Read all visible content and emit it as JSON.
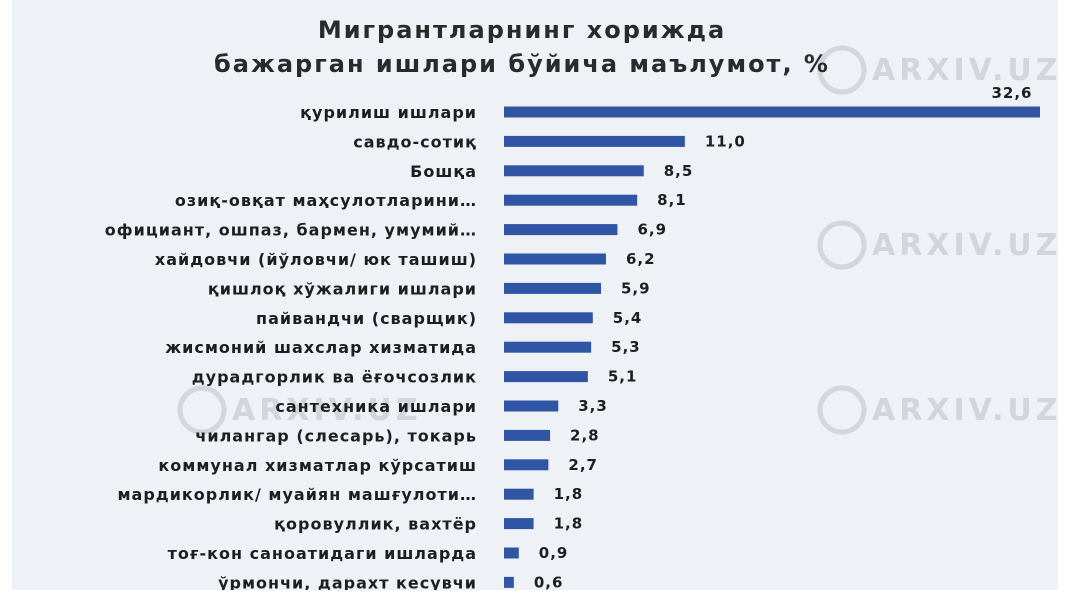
{
  "chart_data": {
    "type": "bar",
    "orientation": "horizontal",
    "title_lines": [
      "Мигрантларнинг хорижда",
      "бажарган ишлари бўйича маълумот, %"
    ],
    "categories": [
      "қурилиш ишлари",
      "савдо-сотиқ",
      "Бошқа",
      "озиқ-овқат маҳсулотларини…",
      "официант, ошпаз, бармен, умумий…",
      "хайдовчи (йўловчи/ юк ташиш)",
      "қишлоқ хўжалиги ишлари",
      "пайвандчи (сварщик)",
      "жисмоний шахслар хизматида",
      "дурадгорлик ва ёғочсозлик",
      "сантехника ишлари",
      "чилангар (слесарь), токарь",
      "коммунал хизматлар кўрсатиш",
      "мардикорлик/ муайян машғулоти…",
      "қоровуллик, вахтёр",
      "тоғ-кон саноатидаги ишларда",
      "ўрмончи, дарахт кесувчи"
    ],
    "values": [
      32.6,
      11.0,
      8.5,
      8.1,
      6.9,
      6.2,
      5.9,
      5.4,
      5.3,
      5.1,
      3.3,
      2.8,
      2.7,
      1.8,
      1.8,
      0.9,
      0.6
    ],
    "value_labels": [
      "32,6",
      "11,0",
      "8,5",
      "8,1",
      "6,9",
      "6,2",
      "5,9",
      "5,4",
      "5,3",
      "5,1",
      "3,3",
      "2,8",
      "2,7",
      "1,8",
      "1,8",
      "0,9",
      "0,6"
    ],
    "xlim": [
      0,
      32.6
    ],
    "grid": false,
    "legend": "none",
    "bar_color": "#2f55a4"
  },
  "watermark": {
    "text": "ARXIV.UZ"
  }
}
